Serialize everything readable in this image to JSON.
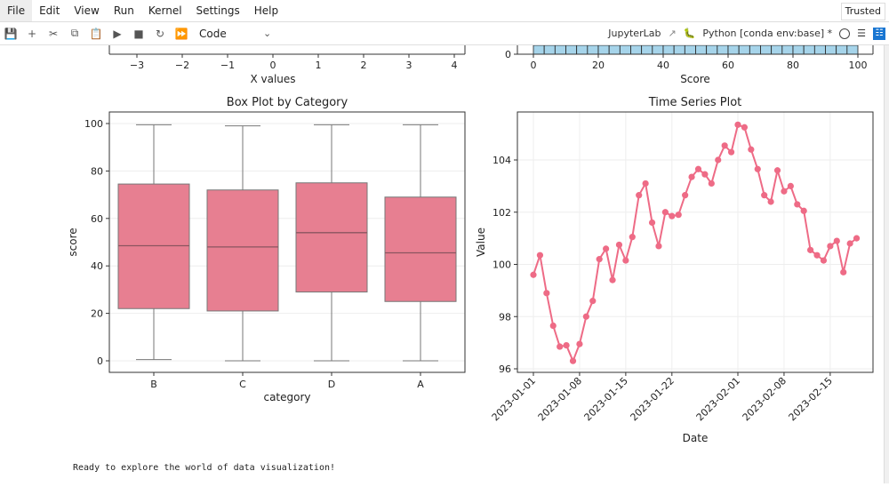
{
  "menubar": {
    "items": [
      "File",
      "Edit",
      "View",
      "Run",
      "Kernel",
      "Settings",
      "Help"
    ],
    "trusted": "Trusted"
  },
  "toolbar": {
    "icons": [
      "save-icon",
      "add-cell-icon",
      "cut-icon",
      "copy-icon",
      "paste-icon",
      "run-icon",
      "stop-icon",
      "restart-icon",
      "run-all-icon"
    ],
    "cell_type": "Code",
    "jupyterlab_link": "JupyterLab",
    "kernel_name": "Python [conda env:base] *"
  },
  "output_text": "Ready to explore the world of data visualization!",
  "colors": {
    "box": "#e77f91",
    "line": "#ee6b86",
    "hist": "#a6d4ea",
    "accent": "#1976d2"
  },
  "chart_data": [
    {
      "type": "partial",
      "xlabel": "X values",
      "xticks": [
        -3,
        -2,
        -1,
        0,
        1,
        2,
        3,
        4
      ]
    },
    {
      "type": "bar",
      "xlabel": "Score",
      "xticks": [
        0,
        20,
        40,
        60,
        80,
        100
      ],
      "yticks": [
        0
      ],
      "bins": 30,
      "xlim": [
        0,
        100
      ]
    },
    {
      "type": "box",
      "title": "Box Plot by Category",
      "xlabel": "category",
      "ylabel": "score",
      "categories": [
        "B",
        "C",
        "D",
        "A"
      ],
      "boxes": [
        {
          "min": 0.5,
          "q1": 22,
          "median": 48.5,
          "q3": 74.5,
          "max": 99.5
        },
        {
          "min": 0,
          "q1": 21,
          "median": 48,
          "q3": 72,
          "max": 99
        },
        {
          "min": 0,
          "q1": 29,
          "median": 54,
          "q3": 75,
          "max": 99.5
        },
        {
          "min": 0,
          "q1": 25,
          "median": 45.5,
          "q3": 69,
          "max": 99.5
        }
      ],
      "yticks": [
        0,
        20,
        40,
        60,
        80,
        100
      ],
      "ylim": [
        -5,
        105
      ],
      "grid": true
    },
    {
      "type": "line",
      "title": "Time Series Plot",
      "xlabel": "Date",
      "ylabel": "Value",
      "start_date": "2023-01-01",
      "values": [
        99.6,
        100.35,
        98.9,
        97.65,
        96.85,
        96.9,
        96.3,
        96.95,
        98.0,
        98.6,
        100.2,
        100.6,
        99.4,
        100.75,
        100.15,
        101.05,
        102.65,
        103.1,
        101.6,
        100.7,
        102.0,
        101.85,
        101.9,
        102.65,
        103.35,
        103.65,
        103.45,
        103.1,
        104.0,
        104.55,
        104.3,
        105.35,
        105.25,
        104.4,
        103.65,
        102.65,
        102.4,
        103.6,
        102.8,
        103.0,
        102.3,
        102.05,
        100.55,
        100.35,
        100.15,
        100.7,
        100.9,
        99.7,
        100.8,
        101.0
      ],
      "xticks": [
        "2023-01-01",
        "2023-01-08",
        "2023-01-15",
        "2023-01-22",
        "2023-02-01",
        "2023-02-08",
        "2023-02-15"
      ],
      "yticks": [
        96,
        98,
        100,
        102,
        104
      ],
      "ylim": [
        95.9,
        105.75
      ],
      "grid": true,
      "markers": true
    }
  ]
}
